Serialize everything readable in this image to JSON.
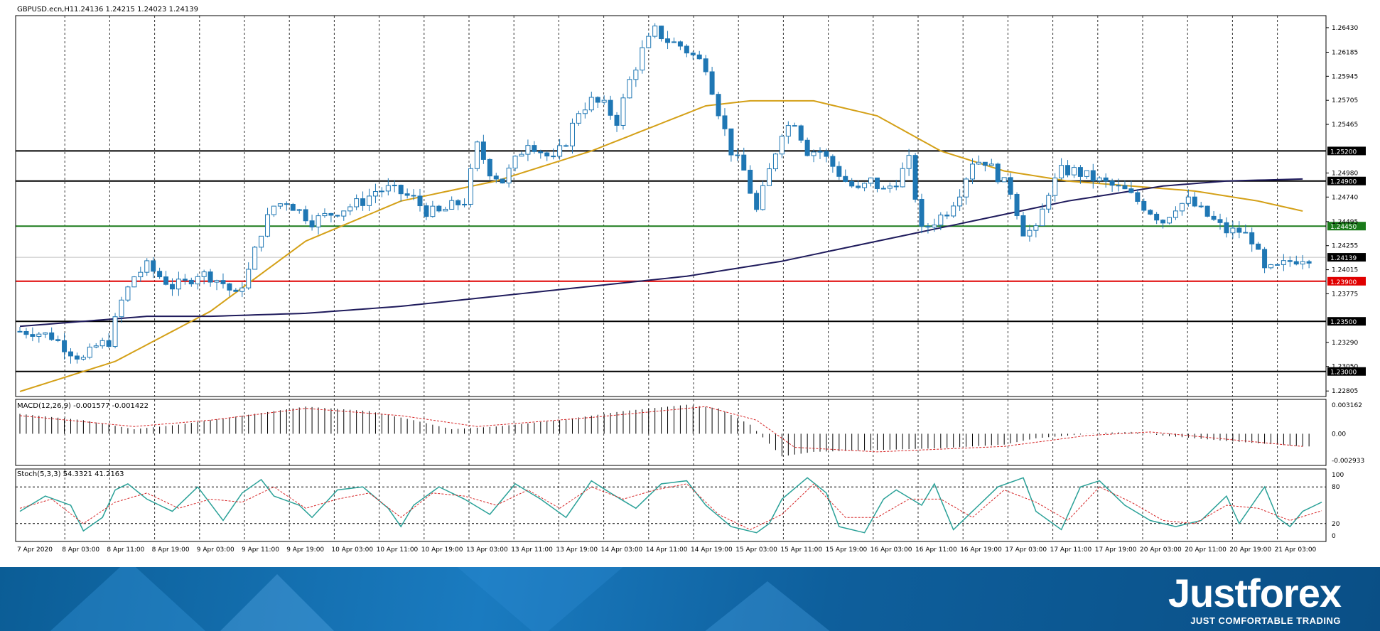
{
  "header": {
    "symbol_label": "GBPUSD.ecn,H1",
    "ohlc_label": "1.24136 1.24215 1.24023 1.24139"
  },
  "indicators": {
    "macd_label": "MACD(12,26,9) -0.001577 -0.001422",
    "stoch_label": "Stoch(5,3,3) 54.3321 41.2163"
  },
  "brand": {
    "name": "Justforex",
    "tagline": "JUST COMFORTABLE TRADING"
  },
  "colors": {
    "candle": "#1f77b4",
    "ma_fast": "#d4a017",
    "ma_slow": "#1f1b5c",
    "level_support": "#1a7a1a",
    "level_red": "#e00000",
    "level_black": "#000000",
    "stoch_main": "#2aa198",
    "stoch_signal": "#d62728",
    "price_line": "#c0c0c0"
  },
  "chart_data": {
    "type": "candlestick",
    "symbol": "GBPUSD.ecn",
    "timeframe": "H1",
    "current_price": 1.24139,
    "price_axis": {
      "ylim": [
        1.2275,
        1.2655
      ],
      "ticks": [
        "1.26430",
        "1.26185",
        "1.25945",
        "1.25705",
        "1.25465",
        "1.24980",
        "1.24740",
        "1.24495",
        "1.24255",
        "1.24015",
        "1.23775",
        "1.23290",
        "1.23050",
        "1.22805"
      ]
    },
    "x_ticks": [
      "7 Apr 2020",
      "8 Apr 03:00",
      "8 Apr 11:00",
      "8 Apr 19:00",
      "9 Apr 03:00",
      "9 Apr 11:00",
      "9 Apr 19:00",
      "10 Apr 03:00",
      "10 Apr 11:00",
      "10 Apr 19:00",
      "13 Apr 03:00",
      "13 Apr 11:00",
      "13 Apr 19:00",
      "14 Apr 03:00",
      "14 Apr 11:00",
      "14 Apr 19:00",
      "15 Apr 03:00",
      "15 Apr 11:00",
      "15 Apr 19:00",
      "16 Apr 03:00",
      "16 Apr 11:00",
      "16 Apr 19:00",
      "17 Apr 03:00",
      "17 Apr 11:00",
      "17 Apr 19:00",
      "20 Apr 03:00",
      "20 Apr 11:00",
      "20 Apr 19:00",
      "21 Apr 03:00"
    ],
    "levels": [
      {
        "value": 1.252,
        "label": "1.25200",
        "color": "#000000"
      },
      {
        "value": 1.249,
        "label": "1.24900",
        "color": "#000000"
      },
      {
        "value": 1.2445,
        "label": "1.24450",
        "color": "#1a7a1a"
      },
      {
        "value": 1.239,
        "label": "1.23900",
        "color": "#e00000"
      },
      {
        "value": 1.235,
        "label": "1.23500",
        "color": "#000000"
      },
      {
        "value": 1.23,
        "label": "1.23000",
        "color": "#000000"
      }
    ],
    "close_path": [
      [
        0,
        1.234
      ],
      [
        2,
        1.234
      ],
      [
        5,
        1.2335
      ],
      [
        8,
        1.232
      ],
      [
        10,
        1.2312
      ],
      [
        12,
        1.2325
      ],
      [
        14,
        1.233
      ],
      [
        16,
        1.237
      ],
      [
        18,
        1.2395
      ],
      [
        20,
        1.2405
      ],
      [
        22,
        1.2395
      ],
      [
        24,
        1.2385
      ],
      [
        26,
        1.2388
      ],
      [
        28,
        1.2398
      ],
      [
        30,
        1.2395
      ],
      [
        32,
        1.2388
      ],
      [
        34,
        1.2375
      ],
      [
        36,
        1.24
      ],
      [
        38,
        1.244
      ],
      [
        40,
        1.2465
      ],
      [
        42,
        1.247
      ],
      [
        44,
        1.246
      ],
      [
        46,
        1.245
      ],
      [
        48,
        1.2455
      ],
      [
        50,
        1.246
      ],
      [
        52,
        1.2465
      ],
      [
        54,
        1.247
      ],
      [
        56,
        1.248
      ],
      [
        58,
        1.2482
      ],
      [
        60,
        1.2478
      ],
      [
        62,
        1.2472
      ],
      [
        64,
        1.246
      ],
      [
        66,
        1.2458
      ],
      [
        68,
        1.2465
      ],
      [
        70,
        1.247
      ],
      [
        72,
        1.2525
      ],
      [
        74,
        1.25
      ],
      [
        76,
        1.249
      ],
      [
        78,
        1.251
      ],
      [
        80,
        1.253
      ],
      [
        82,
        1.252
      ],
      [
        84,
        1.251
      ],
      [
        86,
        1.253
      ],
      [
        88,
        1.256
      ],
      [
        90,
        1.257
      ],
      [
        92,
        1.2565
      ],
      [
        94,
        1.255
      ],
      [
        96,
        1.259
      ],
      [
        98,
        1.262
      ],
      [
        100,
        1.264
      ],
      [
        102,
        1.263
      ],
      [
        104,
        1.2625
      ],
      [
        106,
        1.2615
      ],
      [
        108,
        1.2605
      ],
      [
        110,
        1.256
      ],
      [
        112,
        1.252
      ],
      [
        114,
        1.25
      ],
      [
        116,
        1.246
      ],
      [
        118,
        1.25
      ],
      [
        120,
        1.254
      ],
      [
        122,
        1.255
      ],
      [
        124,
        1.252
      ],
      [
        126,
        1.252
      ],
      [
        128,
        1.2505
      ],
      [
        130,
        1.249
      ],
      [
        132,
        1.248
      ],
      [
        134,
        1.249
      ],
      [
        136,
        1.248
      ],
      [
        138,
        1.249
      ],
      [
        140,
        1.251
      ],
      [
        142,
        1.244
      ],
      [
        144,
        1.245
      ],
      [
        146,
        1.246
      ],
      [
        148,
        1.248
      ],
      [
        150,
        1.251
      ],
      [
        152,
        1.251
      ],
      [
        154,
        1.2495
      ],
      [
        156,
        1.248
      ],
      [
        158,
        1.244
      ],
      [
        160,
        1.244
      ],
      [
        162,
        1.248
      ],
      [
        164,
        1.25
      ],
      [
        166,
        1.25
      ],
      [
        168,
        1.2495
      ],
      [
        170,
        1.249
      ],
      [
        172,
        1.2485
      ],
      [
        174,
        1.248
      ],
      [
        176,
        1.247
      ],
      [
        178,
        1.246
      ],
      [
        180,
        1.245
      ],
      [
        182,
        1.2465
      ],
      [
        184,
        1.247
      ],
      [
        186,
        1.246
      ],
      [
        188,
        1.245
      ],
      [
        190,
        1.244
      ],
      [
        192,
        1.244
      ],
      [
        194,
        1.2432
      ],
      [
        196,
        1.24
      ],
      [
        198,
        1.2403
      ],
      [
        200,
        1.241
      ],
      [
        202,
        1.2414
      ]
    ],
    "ma_fast_path": [
      [
        0,
        1.228
      ],
      [
        15,
        1.231
      ],
      [
        30,
        1.236
      ],
      [
        45,
        1.243
      ],
      [
        60,
        1.247
      ],
      [
        75,
        1.249
      ],
      [
        90,
        1.252
      ],
      [
        100,
        1.2545
      ],
      [
        108,
        1.2565
      ],
      [
        115,
        1.257
      ],
      [
        125,
        1.257
      ],
      [
        135,
        1.2555
      ],
      [
        145,
        1.252
      ],
      [
        155,
        1.25
      ],
      [
        165,
        1.249
      ],
      [
        175,
        1.2485
      ],
      [
        185,
        1.248
      ],
      [
        195,
        1.247
      ],
      [
        202,
        1.246
      ]
    ],
    "ma_slow_path": [
      [
        0,
        1.2345
      ],
      [
        10,
        1.235
      ],
      [
        20,
        1.2355
      ],
      [
        30,
        1.2355
      ],
      [
        45,
        1.2358
      ],
      [
        60,
        1.2365
      ],
      [
        75,
        1.2375
      ],
      [
        90,
        1.2385
      ],
      [
        105,
        1.2395
      ],
      [
        120,
        1.241
      ],
      [
        135,
        1.243
      ],
      [
        150,
        1.245
      ],
      [
        165,
        1.247
      ],
      [
        180,
        1.2485
      ],
      [
        190,
        1.249
      ],
      [
        202,
        1.2492
      ]
    ],
    "macd": {
      "label": "MACD(12,26,9) -0.001577 -0.001422",
      "ticks": [
        "0.003162",
        "0.00",
        "-0.002933"
      ],
      "ylim": [
        -0.0035,
        0.0038
      ],
      "hist_path": [
        [
          0,
          0.0022
        ],
        [
          10,
          0.0015
        ],
        [
          18,
          0.0005
        ],
        [
          25,
          0.001
        ],
        [
          35,
          0.002
        ],
        [
          45,
          0.003
        ],
        [
          55,
          0.0025
        ],
        [
          62,
          0.0015
        ],
        [
          68,
          0.0005
        ],
        [
          75,
          0.0008
        ],
        [
          85,
          0.0015
        ],
        [
          95,
          0.0025
        ],
        [
          105,
          0.0032
        ],
        [
          110,
          0.0028
        ],
        [
          115,
          0.001
        ],
        [
          120,
          -0.0025
        ],
        [
          125,
          -0.002
        ],
        [
          135,
          -0.0018
        ],
        [
          145,
          -0.0016
        ],
        [
          155,
          -0.0012
        ],
        [
          160,
          -0.0005
        ],
        [
          165,
          -0.0002
        ],
        [
          170,
          0.0001
        ],
        [
          175,
          0.0002
        ],
        [
          180,
          -0.0002
        ],
        [
          190,
          -0.0008
        ],
        [
          202,
          -0.0014
        ]
      ],
      "signal_path": [
        [
          0,
          0.002
        ],
        [
          18,
          0.0008
        ],
        [
          30,
          0.0015
        ],
        [
          45,
          0.0028
        ],
        [
          60,
          0.002
        ],
        [
          72,
          0.0008
        ],
        [
          90,
          0.0018
        ],
        [
          108,
          0.003
        ],
        [
          116,
          0.0015
        ],
        [
          122,
          -0.0015
        ],
        [
          135,
          -0.002
        ],
        [
          155,
          -0.0014
        ],
        [
          168,
          -0.0002
        ],
        [
          178,
          0.0002
        ],
        [
          190,
          -0.0006
        ],
        [
          202,
          -0.0014
        ]
      ]
    },
    "stoch": {
      "label": "Stoch(5,3,3) 54.3321 41.2163",
      "ticks": [
        "100",
        "80",
        "20",
        "0"
      ],
      "ylim": [
        0,
        100
      ],
      "main_path": [
        [
          0,
          40
        ],
        [
          4,
          65
        ],
        [
          8,
          50
        ],
        [
          10,
          8
        ],
        [
          13,
          30
        ],
        [
          15,
          75
        ],
        [
          17,
          85
        ],
        [
          20,
          60
        ],
        [
          24,
          40
        ],
        [
          28,
          80
        ],
        [
          32,
          25
        ],
        [
          35,
          70
        ],
        [
          38,
          92
        ],
        [
          40,
          65
        ],
        [
          44,
          50
        ],
        [
          46,
          30
        ],
        [
          50,
          75
        ],
        [
          54,
          80
        ],
        [
          58,
          45
        ],
        [
          60,
          15
        ],
        [
          62,
          50
        ],
        [
          66,
          80
        ],
        [
          70,
          60
        ],
        [
          74,
          35
        ],
        [
          78,
          85
        ],
        [
          82,
          60
        ],
        [
          86,
          30
        ],
        [
          90,
          90
        ],
        [
          93,
          70
        ],
        [
          97,
          45
        ],
        [
          101,
          85
        ],
        [
          105,
          90
        ],
        [
          108,
          50
        ],
        [
          112,
          15
        ],
        [
          116,
          5
        ],
        [
          118,
          20
        ],
        [
          120,
          60
        ],
        [
          124,
          95
        ],
        [
          127,
          70
        ],
        [
          129,
          15
        ],
        [
          133,
          5
        ],
        [
          136,
          60
        ],
        [
          138,
          75
        ],
        [
          142,
          50
        ],
        [
          144,
          85
        ],
        [
          147,
          10
        ],
        [
          150,
          40
        ],
        [
          154,
          80
        ],
        [
          158,
          95
        ],
        [
          160,
          40
        ],
        [
          164,
          10
        ],
        [
          167,
          80
        ],
        [
          170,
          90
        ],
        [
          174,
          50
        ],
        [
          178,
          25
        ],
        [
          182,
          15
        ],
        [
          186,
          25
        ],
        [
          190,
          65
        ],
        [
          192,
          20
        ],
        [
          196,
          80
        ],
        [
          198,
          30
        ],
        [
          200,
          15
        ],
        [
          202,
          40
        ],
        [
          205,
          55
        ]
      ],
      "signal_path": [
        [
          0,
          45
        ],
        [
          5,
          60
        ],
        [
          10,
          20
        ],
        [
          15,
          55
        ],
        [
          20,
          70
        ],
        [
          25,
          45
        ],
        [
          30,
          60
        ],
        [
          35,
          55
        ],
        [
          40,
          80
        ],
        [
          45,
          45
        ],
        [
          50,
          60
        ],
        [
          55,
          70
        ],
        [
          60,
          30
        ],
        [
          65,
          70
        ],
        [
          70,
          65
        ],
        [
          75,
          50
        ],
        [
          80,
          75
        ],
        [
          85,
          45
        ],
        [
          90,
          80
        ],
        [
          95,
          60
        ],
        [
          100,
          75
        ],
        [
          105,
          85
        ],
        [
          110,
          35
        ],
        [
          115,
          10
        ],
        [
          120,
          35
        ],
        [
          125,
          85
        ],
        [
          130,
          30
        ],
        [
          135,
          30
        ],
        [
          140,
          60
        ],
        [
          145,
          60
        ],
        [
          150,
          30
        ],
        [
          155,
          75
        ],
        [
          160,
          55
        ],
        [
          165,
          25
        ],
        [
          170,
          80
        ],
        [
          175,
          55
        ],
        [
          180,
          25
        ],
        [
          185,
          20
        ],
        [
          190,
          50
        ],
        [
          195,
          45
        ],
        [
          200,
          25
        ],
        [
          205,
          41
        ]
      ]
    }
  }
}
